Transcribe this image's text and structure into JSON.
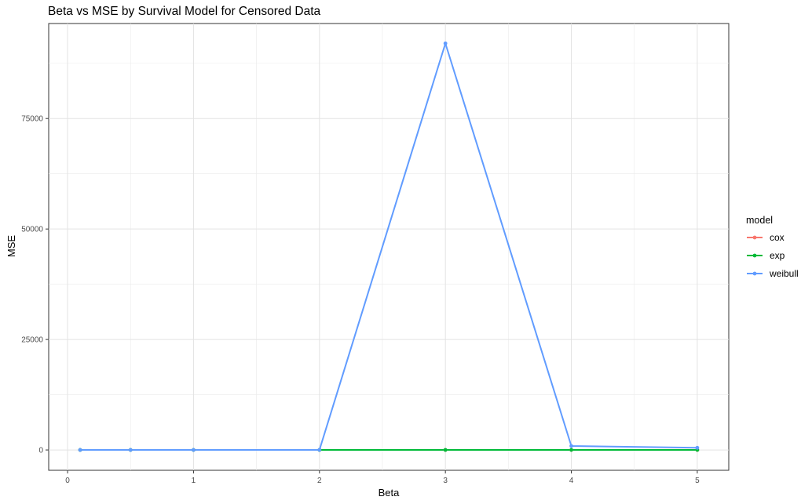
{
  "chart_data": {
    "type": "line",
    "title": "Beta vs MSE by Survival Model for Censored Data",
    "xlabel": "Beta",
    "ylabel": "MSE",
    "xlim": [
      -0.15,
      5.25
    ],
    "ylim": [
      -4600,
      96500
    ],
    "x_ticks": [
      0,
      1,
      2,
      3,
      4,
      5
    ],
    "y_ticks": [
      0,
      25000,
      50000,
      75000
    ],
    "grid": true,
    "legend": {
      "title": "model",
      "placement": "right"
    },
    "series": [
      {
        "name": "cox",
        "color": "#F8766D",
        "x": [
          0.1,
          0.5,
          1,
          2,
          3,
          4,
          5
        ],
        "y": [
          1,
          1,
          1,
          1,
          1,
          1,
          1
        ]
      },
      {
        "name": "exp",
        "color": "#00BA38",
        "x": [
          0.1,
          0.5,
          1,
          2,
          3,
          4,
          5
        ],
        "y": [
          2,
          2,
          2,
          3,
          10,
          15,
          20
        ]
      },
      {
        "name": "weibull",
        "color": "#619CFF",
        "x": [
          0.1,
          0.5,
          1,
          2,
          3,
          4,
          5
        ],
        "y": [
          5,
          5,
          5,
          20,
          92000,
          900,
          500
        ]
      }
    ]
  }
}
